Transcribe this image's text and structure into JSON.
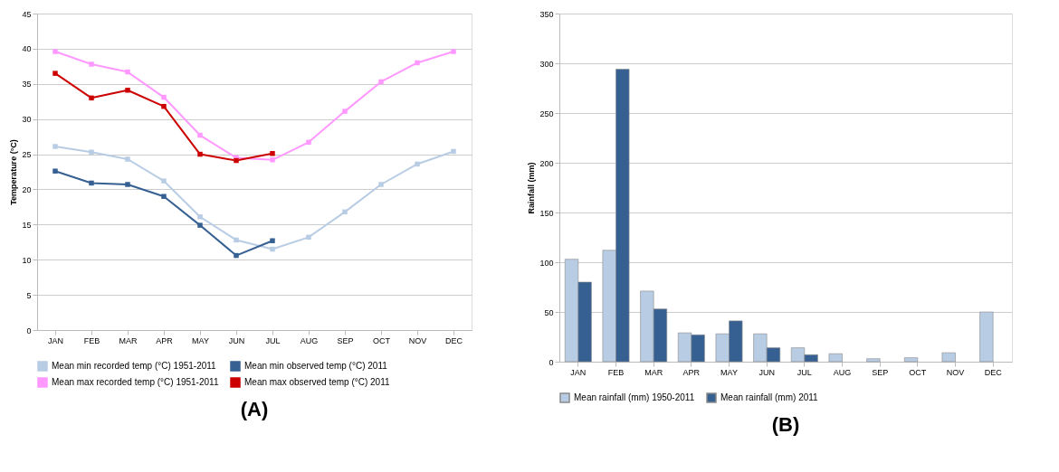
{
  "chart_data": [
    {
      "type": "line",
      "title": "(A)",
      "ylabel": "Temperature (°C)",
      "categories": [
        "JAN",
        "FEB",
        "MAR",
        "APR",
        "MAY",
        "JUN",
        "JUL",
        "AUG",
        "SEP",
        "OCT",
        "NOV",
        "DEC"
      ],
      "ylim": [
        0,
        45
      ],
      "yticks": [
        0,
        5,
        10,
        15,
        20,
        25,
        30,
        35,
        40,
        45
      ],
      "grid": "y",
      "legend": "bottom",
      "marker": "square",
      "line_style": "solid",
      "series": [
        {
          "name": "Mean min recorded temp (°C) 1951-2011",
          "color": "#b8cce4",
          "values": [
            26.1,
            25.3,
            24.3,
            21.2,
            16.1,
            12.8,
            11.5,
            13.2,
            16.8,
            20.7,
            23.6,
            25.4
          ]
        },
        {
          "name": "Mean min observed temp (°C) 2011",
          "color": "#366092",
          "values": [
            22.6,
            20.9,
            20.7,
            19.0,
            14.9,
            10.6,
            12.7,
            null,
            null,
            null,
            null,
            null
          ]
        },
        {
          "name": "Mean max recorded temp (°C) 1951-2011",
          "color": "#ff99ff",
          "values": [
            39.6,
            37.8,
            36.7,
            33.1,
            27.7,
            24.5,
            24.2,
            26.7,
            31.1,
            35.3,
            38.0,
            39.6
          ]
        },
        {
          "name": "Mean max observed temp (°C) 2011",
          "color": "#cc0000",
          "values": [
            36.5,
            33.0,
            34.1,
            31.8,
            25.0,
            24.1,
            25.1,
            null,
            null,
            null,
            null,
            null
          ]
        }
      ]
    },
    {
      "type": "bar",
      "title": "(B)",
      "ylabel": "Rainfall (mm)",
      "categories": [
        "JAN",
        "FEB",
        "MAR",
        "APR",
        "MAY",
        "JUN",
        "JUL",
        "AUG",
        "SEP",
        "OCT",
        "NOV",
        "DEC"
      ],
      "ylim": [
        0,
        350
      ],
      "yticks": [
        0,
        50,
        100,
        150,
        200,
        250,
        300,
        350
      ],
      "grid": "y",
      "legend": "bottom",
      "series": [
        {
          "name": "Mean rainfall (mm) 1950-2011",
          "color": "#b8cce4",
          "values": [
            103,
            112,
            71,
            29,
            28,
            28,
            14,
            8,
            3,
            4,
            9,
            50
          ]
        },
        {
          "name": "Mean rainfall (mm) 2011",
          "color": "#366092",
          "values": [
            80,
            294,
            53,
            27,
            41,
            14,
            7,
            null,
            null,
            null,
            null,
            null
          ]
        }
      ]
    }
  ]
}
